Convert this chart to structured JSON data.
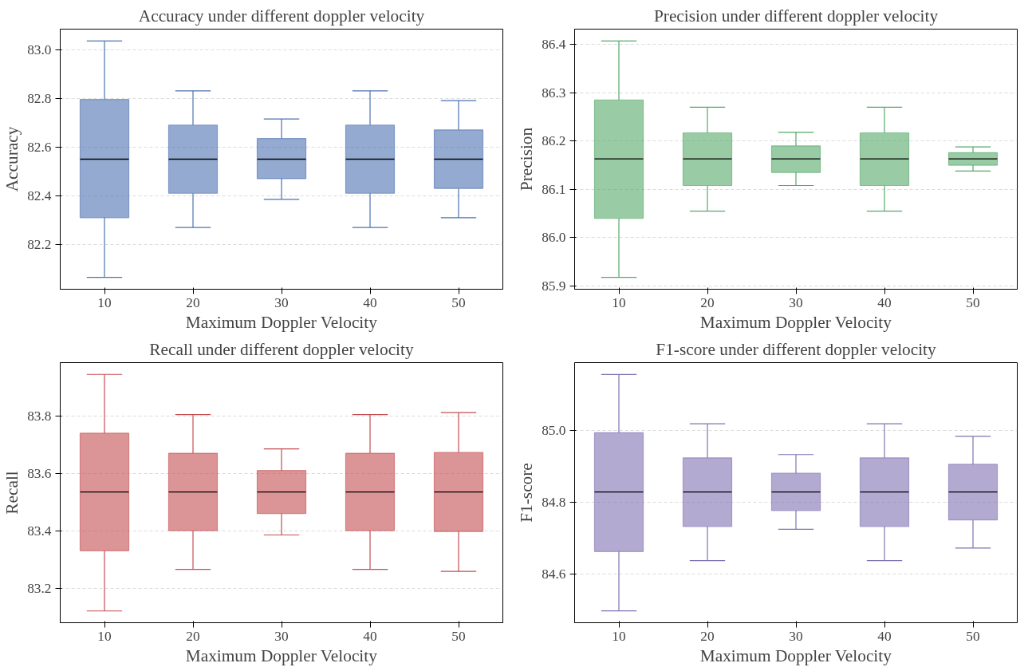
{
  "chart_data": [
    {
      "type": "box",
      "title": "Accuracy under different doppler velocity",
      "xlabel": "Maximum Doppler Velocity",
      "ylabel": "Accuracy",
      "categories": [
        "10",
        "20",
        "30",
        "40",
        "50"
      ],
      "ylim": [
        82.0165,
        83.0835
      ],
      "yticks": [
        82.2,
        82.4,
        82.6,
        82.8,
        {
          "value": 83,
          "label": "83.0"
        }
      ],
      "grid": "y",
      "series": [
        {
          "color": "#4c72b0",
          "boxes": [
            {
              "low": 82.065,
              "q1": 82.31,
              "median": 82.55,
              "q3": 82.795,
              "high": 83.035
            },
            {
              "low": 82.27,
              "q1": 82.41,
              "median": 82.55,
              "q3": 82.69,
              "high": 82.83
            },
            {
              "low": 82.385,
              "q1": 82.47,
              "median": 82.55,
              "q3": 82.635,
              "high": 82.715
            },
            {
              "low": 82.27,
              "q1": 82.41,
              "median": 82.55,
              "q3": 82.69,
              "high": 82.83
            },
            {
              "low": 82.31,
              "q1": 82.43,
              "median": 82.55,
              "q3": 82.67,
              "high": 82.79
            }
          ]
        }
      ]
    },
    {
      "type": "box",
      "title": "Precision under different doppler velocity",
      "xlabel": "Maximum Doppler Velocity",
      "ylabel": "Precision",
      "categories": [
        "10",
        "20",
        "30",
        "40",
        "50"
      ],
      "ylim": [
        85.8935,
        86.4315
      ],
      "yticks": [
        85.9,
        {
          "value": 86,
          "label": "86.0"
        },
        86.1,
        86.2,
        86.3,
        86.4
      ],
      "grid": "y",
      "series": [
        {
          "color": "#55a868",
          "boxes": [
            {
              "low": 85.918,
              "q1": 86.04,
              "median": 86.163,
              "q3": 86.285,
              "high": 86.407
            },
            {
              "low": 86.055,
              "q1": 86.108,
              "median": 86.163,
              "q3": 86.217,
              "high": 86.27
            },
            {
              "low": 86.108,
              "q1": 86.135,
              "median": 86.163,
              "q3": 86.19,
              "high": 86.218
            },
            {
              "low": 86.055,
              "q1": 86.108,
              "median": 86.163,
              "q3": 86.217,
              "high": 86.27
            },
            {
              "low": 86.138,
              "q1": 86.15,
              "median": 86.163,
              "q3": 86.176,
              "high": 86.188
            }
          ]
        }
      ]
    },
    {
      "type": "box",
      "title": "Recall under different doppler velocity",
      "xlabel": "Maximum Doppler Velocity",
      "ylabel": "Recall",
      "categories": [
        "10",
        "20",
        "30",
        "40",
        "50"
      ],
      "ylim": [
        83.079,
        83.986
      ],
      "yticks": [
        83.2,
        83.4,
        83.6,
        83.8
      ],
      "grid": "y",
      "series": [
        {
          "color": "#c44e52",
          "boxes": [
            {
              "low": 83.12,
              "q1": 83.33,
              "median": 83.535,
              "q3": 83.74,
              "high": 83.945
            },
            {
              "low": 83.265,
              "q1": 83.4,
              "median": 83.535,
              "q3": 83.67,
              "high": 83.805
            },
            {
              "low": 83.385,
              "q1": 83.46,
              "median": 83.535,
              "q3": 83.61,
              "high": 83.685
            },
            {
              "low": 83.265,
              "q1": 83.4,
              "median": 83.535,
              "q3": 83.67,
              "high": 83.805
            },
            {
              "low": 83.258,
              "q1": 83.397,
              "median": 83.535,
              "q3": 83.673,
              "high": 83.812
            }
          ]
        }
      ]
    },
    {
      "type": "box",
      "title": "F1-score under different doppler velocity",
      "xlabel": "Maximum Doppler Velocity",
      "ylabel": "F1-score",
      "categories": [
        "10",
        "20",
        "30",
        "40",
        "50"
      ],
      "ylim": [
        84.464,
        85.188
      ],
      "yticks": [
        84.6,
        84.8,
        {
          "value": 85,
          "label": "85.0"
        }
      ],
      "grid": "y",
      "series": [
        {
          "color": "#8172b2",
          "boxes": [
            {
              "low": 84.497,
              "q1": 84.662,
              "median": 84.828,
              "q3": 84.993,
              "high": 85.155
            },
            {
              "low": 84.637,
              "q1": 84.732,
              "median": 84.828,
              "q3": 84.923,
              "high": 85.018
            },
            {
              "low": 84.724,
              "q1": 84.776,
              "median": 84.828,
              "q3": 84.88,
              "high": 84.932
            },
            {
              "low": 84.637,
              "q1": 84.732,
              "median": 84.828,
              "q3": 84.923,
              "high": 85.018
            },
            {
              "low": 84.672,
              "q1": 84.75,
              "median": 84.828,
              "q3": 84.905,
              "high": 84.983
            }
          ]
        }
      ]
    }
  ]
}
